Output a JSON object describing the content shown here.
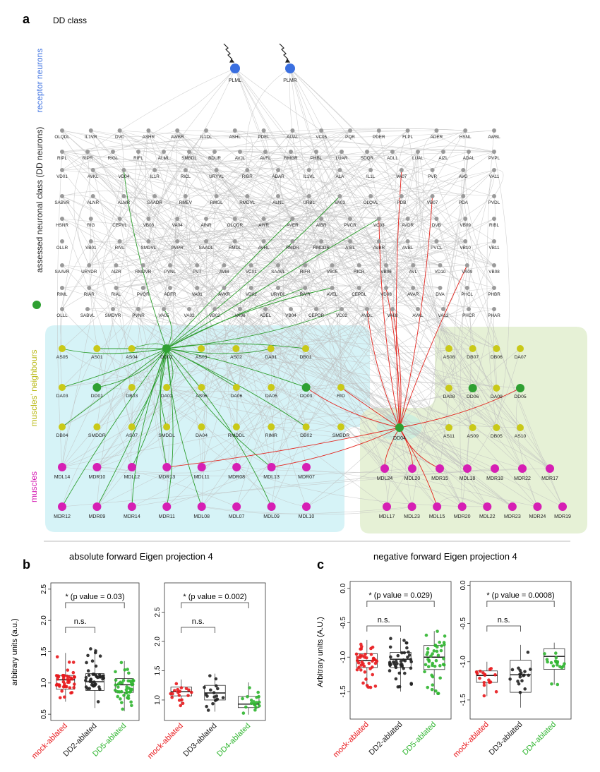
{
  "panel_a": {
    "letter": "a",
    "title": "DD class",
    "side_labels": {
      "receptor": "receptor neurons",
      "assessed": "assessed neuronal class (DD neurons)",
      "neighbours": "muscles' neighbours",
      "muscles": "muscles"
    },
    "receptor_nodes": [
      "PLML",
      "PLMR"
    ],
    "neuron_rows": [
      [
        "OLQDL",
        "IL1VR",
        "DVC",
        "ASHR",
        "AWBR",
        "IL1DL",
        "ASHL",
        "PDEL",
        "AUAL",
        "VC05",
        "PQR",
        "PDER",
        "FLPL",
        "ADER",
        "HSNL",
        "AWBL"
      ],
      [
        "RIPL",
        "RIPR",
        "RIGL",
        "RIFL",
        "ALML",
        "SMBDL",
        "BDUR",
        "AVJL",
        "AVFL",
        "RMGR",
        "PHBL",
        "LUAR",
        "SDQR",
        "ADLL",
        "LUAL",
        "AIZL",
        "ADAL",
        "PVPL"
      ],
      [
        "VD01",
        "AVKL",
        "VD04",
        "IL1R",
        "RICL",
        "URYVL",
        "RIBR",
        "ADAR",
        "IL1VL",
        "ALA",
        "IL1L",
        "VA07",
        "PVR",
        "AVG",
        "VA11"
      ],
      [
        "SABVR",
        "ALNR",
        "ALMR",
        "SAADR",
        "RMEV",
        "RMGL",
        "RMDVL",
        "ALNL",
        "URBL",
        "VA03",
        "OLQVL",
        "PDB",
        "VB07",
        "PDA",
        "PVDL"
      ],
      [
        "HSNR",
        "RIG",
        "CEPVL",
        "VB03",
        "VA04",
        "AINR",
        "OLQDR",
        "AIYR",
        "AVER",
        "AIBR",
        "PVCR",
        "VC03",
        "AVDR",
        "DVB",
        "VB09",
        "RIBL"
      ],
      [
        "OLLR",
        "VB01",
        "RIVL",
        "SMDVL",
        "PVPR",
        "SAADL",
        "RMDL",
        "AVHL",
        "RMDR",
        "RMDDR",
        "AIBL",
        "AVBR",
        "AVBL",
        "PVCL",
        "VB10",
        "VB11"
      ],
      [
        "SAAVR",
        "URYDR",
        "AIZR",
        "RMDVR",
        "PVNL",
        "PVT",
        "AVM",
        "VC01",
        "SAAVL",
        "RIFR",
        "VB05",
        "RICR",
        "VB06",
        "AVL",
        "VD10",
        "VA09",
        "VB08"
      ],
      [
        "RIML",
        "RIAR",
        "RIAL",
        "PVQR",
        "ADFR",
        "VA01",
        "AVKR",
        "VD02",
        "URYDL",
        "RIVR",
        "AVEL",
        "CEPDL",
        "VD08",
        "AVAR",
        "DVA",
        "PHCL",
        "PHBR"
      ],
      [
        "OLLL",
        "SABVL",
        "SMDVR",
        "PVNR",
        "VA05",
        "VA02",
        "VB02",
        "VA06",
        "ADEL",
        "VB04",
        "CEPDR",
        "VC02",
        "AVDL",
        "VA08",
        "AVAL",
        "VA12",
        "PHCR",
        "PHAR"
      ]
    ],
    "left_box": {
      "neighbour_rows": [
        [
          "AS05",
          "AS01",
          "AS04",
          "DD02",
          "AS03",
          "AS02",
          "DA01",
          "DB01"
        ],
        [
          "DA03",
          "DD01",
          "DB03",
          "DA02",
          "AS06",
          "DA06",
          "DA05",
          "DD03",
          "RID"
        ],
        [
          "DB04",
          "SMDDR",
          "AS07",
          "SMDDL",
          "DA04",
          "RMDDL",
          "RIMR",
          "DB02",
          "SMBDR"
        ]
      ],
      "muscle_rows": [
        [
          "MDL14",
          "MDR10",
          "MDL12",
          "MDR13",
          "MDL11",
          "MDR08",
          "MDL13",
          "MDR07"
        ],
        [
          "MDR12",
          "MDR09",
          "MDR14",
          "MDR11",
          "MDL08",
          "MDL07",
          "MDL09",
          "MDL10"
        ]
      ]
    },
    "center_node": "DD04",
    "right_box": {
      "neighbour_rows": [
        [
          "AS08",
          "DB07",
          "DB06",
          "DA07"
        ],
        [
          "DA08",
          "DD06",
          "DA09",
          "DD05"
        ],
        [
          "AS11",
          "AS09",
          "DB05",
          "AS10"
        ]
      ],
      "muscle_rows": [
        [
          "MDL24",
          "MDL20",
          "MDR15",
          "MDL18",
          "MDR18",
          "MDR22",
          "MDR17"
        ],
        [
          "MDL17",
          "MDL23",
          "MDL15",
          "MDR20",
          "MDL22",
          "MDR23",
          "MDR24",
          "MDR19"
        ]
      ]
    }
  },
  "panel_b": {
    "letter": "b",
    "title": "absolute forward Eigen projection 4",
    "ylabel": "arbitrary units (a.u.)"
  },
  "panel_c": {
    "letter": "c",
    "title": "negative forward Eigen projection 4",
    "ylabel": "Arbitrary units (A.U.)"
  },
  "chart_data": [
    {
      "type": "box",
      "panel": "b-left",
      "categories": [
        "mock-ablated",
        "DD2-ablated",
        "DD5-ablated"
      ],
      "category_colors": [
        "#e8181c",
        "#222222",
        "#2fb52f"
      ],
      "yticks": [
        "0.5",
        "1.0",
        "1.5",
        "2.0",
        "2.5"
      ],
      "ylim": [
        0.4,
        2.6
      ],
      "boxes": [
        {
          "q1": 0.9,
          "median": 1.05,
          "q3": 1.12,
          "whisker_low": 0.7,
          "whisker_high": 1.48
        },
        {
          "q1": 0.88,
          "median": 1.02,
          "q3": 1.15,
          "whisker_low": 0.6,
          "whisker_high": 1.55
        },
        {
          "q1": 0.85,
          "median": 0.97,
          "q3": 1.07,
          "whisker_low": 0.55,
          "whisker_high": 1.35
        }
      ],
      "annotations": {
        "significance": "* (p value = 0.03)",
        "ns": "n.s."
      }
    },
    {
      "type": "box",
      "panel": "b-right",
      "categories": [
        "mock-ablated",
        "DD3-ablated",
        "DD4-ablated"
      ],
      "category_colors": [
        "#e8181c",
        "#222222",
        "#2fb52f"
      ],
      "yticks": [
        "1.0",
        "1.5",
        "2.0",
        "2.5"
      ],
      "ylim": [
        0.65,
        3.0
      ],
      "boxes": [
        {
          "q1": 1.07,
          "median": 1.14,
          "q3": 1.22,
          "whisker_low": 0.9,
          "whisker_high": 1.35
        },
        {
          "q1": 1.0,
          "median": 1.12,
          "q3": 1.25,
          "whisker_low": 0.8,
          "whisker_high": 1.45
        },
        {
          "q1": 0.87,
          "median": 0.93,
          "q3": 1.06,
          "whisker_low": 0.75,
          "whisker_high": 1.3
        }
      ],
      "annotations": {
        "significance": "* (p value = 0.002)",
        "ns": "n.s."
      }
    },
    {
      "type": "box",
      "panel": "c-left",
      "categories": [
        "mock-ablated",
        "DD2-ablated",
        "DD5-ablated"
      ],
      "category_colors": [
        "#e8181c",
        "#222222",
        "#2fb52f"
      ],
      "yticks": [
        "0.0",
        "-0.5",
        "-1.0",
        "-1.5"
      ],
      "ylim": [
        -1.9,
        0.1
      ],
      "boxes": [
        {
          "q1": -1.15,
          "median": -1.05,
          "q3": -0.95,
          "whisker_low": -1.45,
          "whisker_high": -0.75
        },
        {
          "q1": -1.15,
          "median": -1.03,
          "q3": -0.93,
          "whisker_low": -1.5,
          "whisker_high": -0.72
        },
        {
          "q1": -1.18,
          "median": -1.0,
          "q3": -0.83,
          "whisker_low": -1.55,
          "whisker_high": -0.62
        }
      ],
      "annotations": {
        "significance": "* (p value = 0.029)",
        "ns": "n.s."
      }
    },
    {
      "type": "box",
      "panel": "c-right",
      "categories": [
        "mock-ablated",
        "DD3-ablated",
        "DD4-ablated"
      ],
      "category_colors": [
        "#e8181c",
        "#222222",
        "#2fb52f"
      ],
      "yticks": [
        "0.0",
        "-0.5",
        "-1.0",
        "-1.5"
      ],
      "ylim": [
        -1.75,
        0.05
      ],
      "boxes": [
        {
          "q1": -1.27,
          "median": -1.18,
          "q3": -1.12,
          "whisker_low": -1.45,
          "whisker_high": -1.0
        },
        {
          "q1": -1.4,
          "median": -1.17,
          "q3": -0.98,
          "whisker_low": -1.6,
          "whisker_high": -0.78
        },
        {
          "q1": -1.1,
          "median": -0.93,
          "q3": -0.83,
          "whisker_low": -1.3,
          "whisker_high": -0.75
        }
      ],
      "annotations": {
        "significance": "* (p value = 0.0008)",
        "ns": "n.s."
      }
    }
  ],
  "colors": {
    "receptor": "#3a6fe0",
    "neuron": "#9a9a9a",
    "dd": "#2fa032",
    "neighbour": "#c9c918",
    "muscle": "#d61fb4",
    "box_left": "#d6f3f7",
    "box_right": "#e6f1d6",
    "edge": "#bdbdbd",
    "green_edge": "#2f9e2f",
    "red_edge": "#e3261f"
  }
}
